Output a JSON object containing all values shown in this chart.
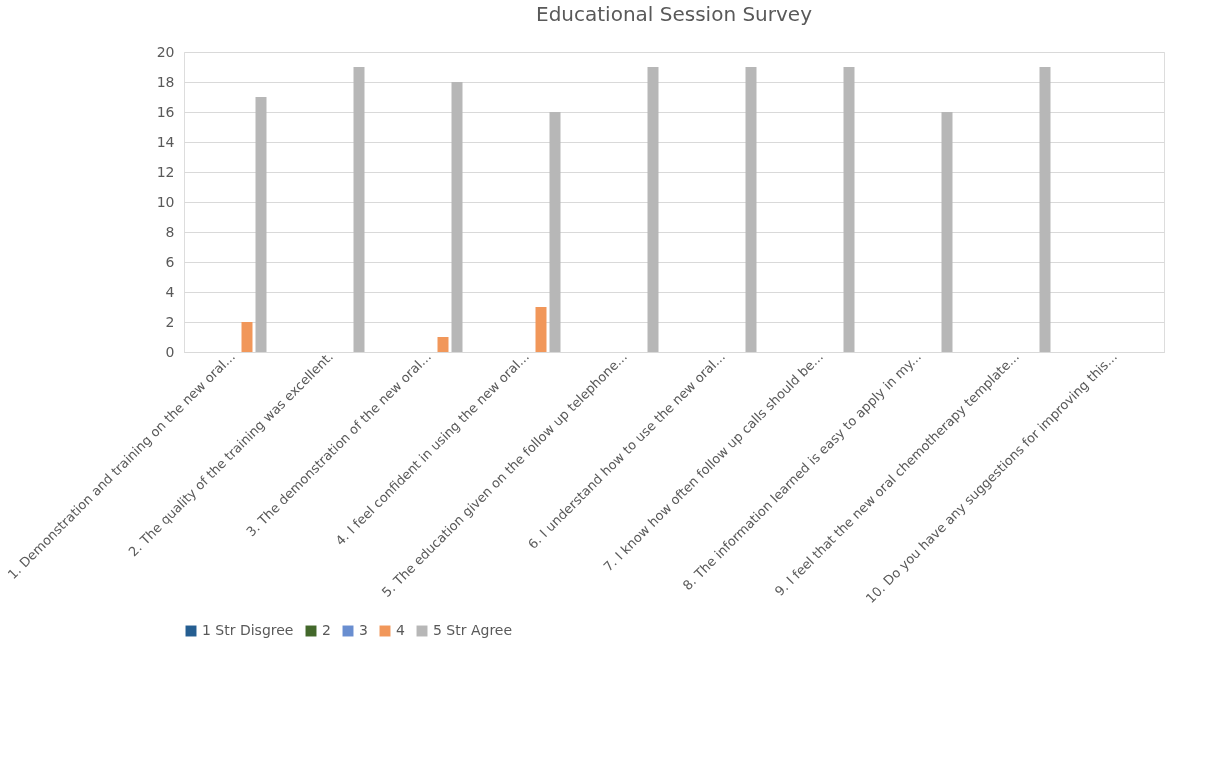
{
  "chart_data": {
    "type": "bar",
    "title": "Educational Session Survey",
    "categories": [
      "1. Demonstration and training on the new oral...",
      "2. The quality of the training was excellent.",
      "3. The demonstration of the new oral...",
      "4. I feel confident in using the new oral...",
      "5. The education given on the follow up telephone...",
      "6. I understand how to use the new oral...",
      "7. I know how often follow up calls should be...",
      "8. The information learned is easy to apply in my...",
      "9. I feel that the new oral chemotherapy template...",
      "10. Do you have any suggestions for improving this..."
    ],
    "series": [
      {
        "name": "1 Str Disgree",
        "color": "#255e91",
        "values": [
          0,
          0,
          0,
          0,
          0,
          0,
          0,
          0,
          0,
          0
        ]
      },
      {
        "name": "2",
        "color": "#43682b",
        "values": [
          0,
          0,
          0,
          0,
          0,
          0,
          0,
          0,
          0,
          0
        ]
      },
      {
        "name": "3",
        "color": "#698ed0",
        "values": [
          0,
          0,
          0,
          0,
          0,
          0,
          0,
          0,
          0,
          0
        ]
      },
      {
        "name": "4",
        "color": "#f1975a",
        "values": [
          2,
          0,
          1,
          3,
          0,
          0,
          0,
          0,
          0,
          0
        ]
      },
      {
        "name": "5 Str Agree",
        "color": "#b7b7b7",
        "values": [
          17,
          19,
          18,
          16,
          19,
          19,
          19,
          16,
          19,
          0
        ]
      }
    ],
    "ylim": [
      0,
      20
    ],
    "yticks": [
      0,
      2,
      4,
      6,
      8,
      10,
      12,
      14,
      16,
      18,
      20
    ],
    "grid": "y",
    "legend": "bottom"
  }
}
